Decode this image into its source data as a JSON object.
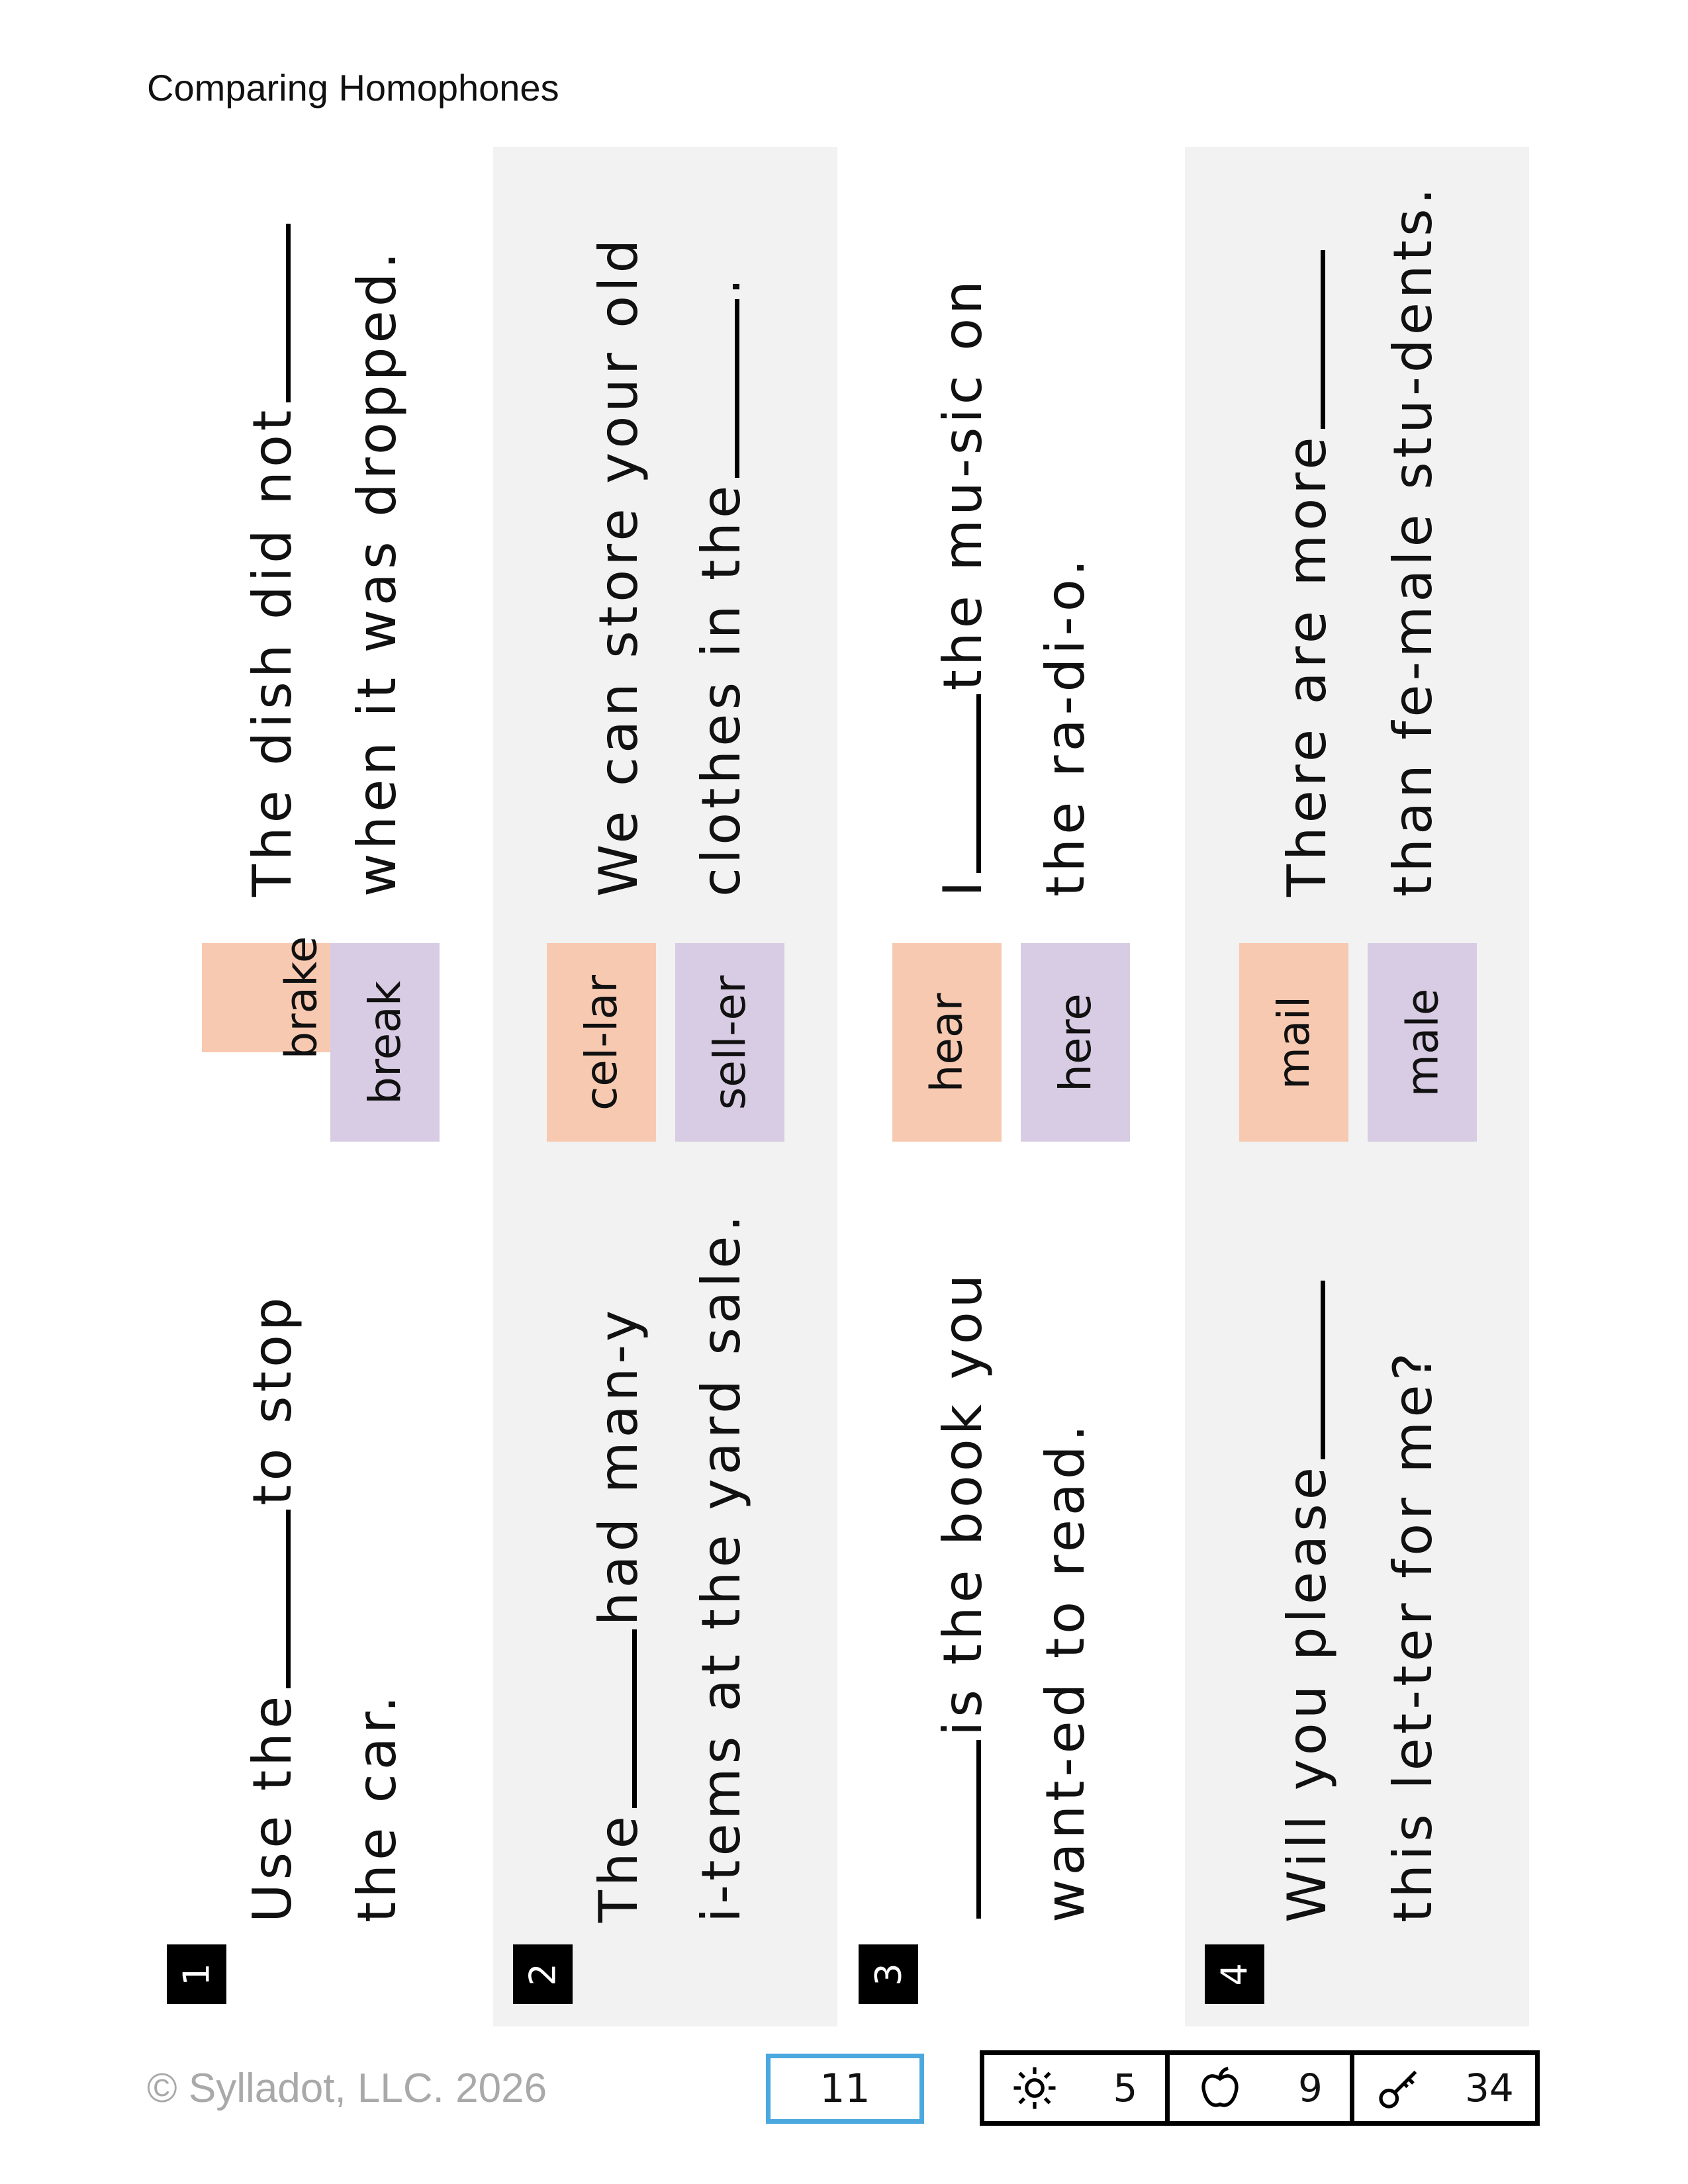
{
  "title": "Comparing Homophones",
  "items": [
    {
      "number": "1",
      "sentence_a": {
        "before": "Use the",
        "after": "to stop",
        "line2": "the car."
      },
      "choices": [
        "brake",
        "break"
      ],
      "sentence_b": {
        "line1_before": "The dish did not",
        "line2": "when it was dropped."
      }
    },
    {
      "number": "2",
      "sentence_a": {
        "before": "The",
        "after": "had man-y",
        "line2": "i-tems at the yard sale."
      },
      "choices": [
        "cel-lar",
        "sell-er"
      ],
      "sentence_b": {
        "line1_before": "We can store your old",
        "line2": "clothes in the",
        "line2_after": "."
      }
    },
    {
      "number": "3",
      "sentence_a": {
        "before": "",
        "after": "is the book you",
        "line2": "want-ed to read."
      },
      "choices": [
        "hear",
        "here"
      ],
      "sentence_b": {
        "line1_before": "I",
        "line1_after": "the mu-sic on",
        "line2": "the ra-di-o."
      }
    },
    {
      "number": "4",
      "sentence_a": {
        "before": "Will you please",
        "after": "",
        "line2": "this let-ter for me?"
      },
      "choices": [
        "mail",
        "male"
      ],
      "sentence_b": {
        "line1_before": "There are more",
        "line2": "than fe-male stu-dents."
      }
    }
  ],
  "footer": {
    "copyright": "© Sylladot, LLC.  2026",
    "page": "11",
    "stats": [
      {
        "icon": "sun-icon",
        "value": "5"
      },
      {
        "icon": "apple-icon",
        "value": "9"
      },
      {
        "icon": "key-icon",
        "value": "34"
      }
    ]
  },
  "colors": {
    "band_alt": "#f1f2f1",
    "choice_a": "#f8c9b1",
    "choice_b": "#d8cce4",
    "dot": "#3ea6e0",
    "page_box": "#4aa8df"
  }
}
